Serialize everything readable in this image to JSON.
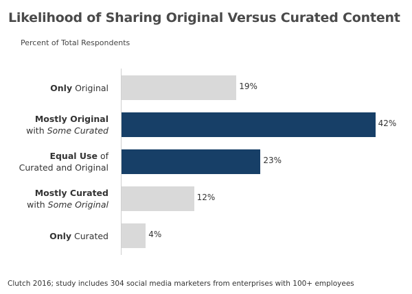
{
  "chart_data": {
    "type": "bar",
    "orientation": "horizontal",
    "title": "Likelihood of Sharing Original Versus Curated Content",
    "subtitle": "Percent of Total Respondents",
    "source": "Clutch 2016; study includes 304 social media marketers from enterprises with 100+ employees",
    "xlim": [
      0,
      45
    ],
    "categories": [
      {
        "parts": [
          [
            "b",
            "Only"
          ],
          [
            "t",
            " Original"
          ]
        ]
      },
      {
        "parts": [
          [
            "b",
            "Mostly Original"
          ],
          [
            "br",
            ""
          ],
          [
            "t",
            "with "
          ],
          [
            "i",
            "Some Curated"
          ]
        ]
      },
      {
        "parts": [
          [
            "b",
            "Equal Use"
          ],
          [
            "t",
            " of"
          ],
          [
            "br",
            ""
          ],
          [
            "t",
            "Curated and Original"
          ]
        ]
      },
      {
        "parts": [
          [
            "b",
            "Mostly Curated"
          ],
          [
            "br",
            ""
          ],
          [
            "t",
            "with "
          ],
          [
            "i",
            "Some Original"
          ]
        ]
      },
      {
        "parts": [
          [
            "b",
            "Only"
          ],
          [
            "t",
            " Curated"
          ]
        ]
      }
    ],
    "values": [
      19,
      42,
      23,
      12,
      4
    ],
    "value_labels": [
      "19%",
      "42%",
      "23%",
      "12%",
      "4%"
    ],
    "highlighted": [
      false,
      true,
      true,
      false,
      false
    ],
    "colors": {
      "default": "#d9d9d9",
      "highlight": "#173f67"
    }
  }
}
